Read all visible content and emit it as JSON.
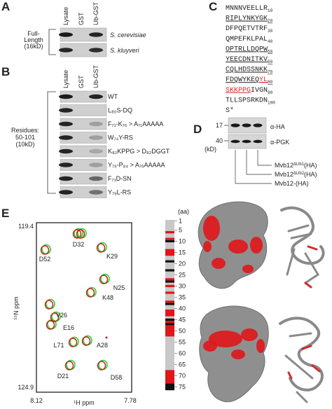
{
  "panel_a": {
    "label": "A",
    "lanes": [
      "Lysate",
      "GST",
      "Ub-GST"
    ],
    "side_label": [
      "Full-",
      "Length",
      "(16kD)"
    ],
    "rows": [
      "S. cerevisiae",
      "S. kluyveri"
    ]
  },
  "panel_b": {
    "label": "B",
    "lanes": [
      "Lysate",
      "GST",
      "Ub-GST"
    ],
    "side_label": [
      "Residues:",
      "50-101",
      "(10kD)"
    ],
    "rows": [
      "WT",
      "L₈₀S-DQ",
      "F₇₁-K₇₆ > A₇₁AAAAA",
      "W₇₄Y-RS",
      "K₈₂KPPG > D₈₂DGGT",
      "Y₇₉-P₈₄ > A₇₉AAAAA",
      "F₇₁D-SN",
      "Y₇₉L-RS"
    ]
  },
  "panel_c": {
    "label": "C",
    "lines": [
      {
        "segments": [
          {
            "text": "MNNNVEELLR"
          }
        ],
        "num": "10",
        "underlined": false
      },
      {
        "segments": [
          {
            "text": "RIPLYNKYGK"
          }
        ],
        "num": "20",
        "underlined": true
      },
      {
        "segments": [
          {
            "text": "DFPQETVTRF"
          }
        ],
        "num": "30",
        "underlined": false
      },
      {
        "segments": [
          {
            "text": "QMPEFKLPAL"
          }
        ],
        "num": "40",
        "underlined": false
      },
      {
        "segments": [
          {
            "text": "OPTRLLDQPW"
          }
        ],
        "num": "50",
        "underlined": true
      },
      {
        "segments": [
          {
            "text": "YEECDNITKV"
          }
        ],
        "num": "60",
        "underlined": true
      },
      {
        "segments": [
          {
            "text": "CQLHDSSNKK"
          }
        ],
        "num": "70",
        "underlined": true
      },
      {
        "segments": [
          {
            "text": "FDQWYKEQ"
          },
          {
            "text": "YL",
            "color": "#d42a2a"
          }
        ],
        "num": "80",
        "underlined": true
      },
      {
        "segments": [
          {
            "text": "SKKPPG",
            "color": "#d42a2a"
          },
          {
            "text": "IVGN"
          }
        ],
        "num": "90",
        "underlined": false
      },
      {
        "segments": [
          {
            "text": "TLLSPSRKDN"
          }
        ],
        "num": "100",
        "underlined": false
      },
      {
        "segments": [
          {
            "text": "S*"
          }
        ],
        "underlined": false
      }
    ]
  },
  "panel_d": {
    "label": "D",
    "markers": [
      "17",
      "40"
    ],
    "unit": "(kD)",
    "antibodies": [
      "α-HA",
      "α-PGK"
    ],
    "lanes": [
      {
        "base": "Mvb12",
        "sup": "ΔUb1",
        "suffix": "(HA)"
      },
      {
        "base": "Mvb12",
        "sup": "ΔUb2",
        "suffix": "(HA)"
      },
      {
        "base": "Mvb12-(HA)"
      }
    ]
  },
  "panel_e": {
    "label": "E",
    "y_top": "119.4",
    "y_bottom": "124.9",
    "y_label": "¹⁵N ppm",
    "x_left": "8.12",
    "x_right": "7.78",
    "x_label": "¹H ppm",
    "peaks": [
      "D32",
      "K29",
      "D52",
      "N25",
      "K48",
      "V26",
      "E16",
      "L71",
      "A28",
      "D21",
      "D58"
    ],
    "strip_label": "(aa)",
    "strip_ticks": [
      "1",
      "5",
      "10",
      "15",
      "20",
      "25",
      "30",
      "35",
      "40",
      "45",
      "50",
      "55",
      "60",
      "65",
      "70",
      "75"
    ]
  }
}
